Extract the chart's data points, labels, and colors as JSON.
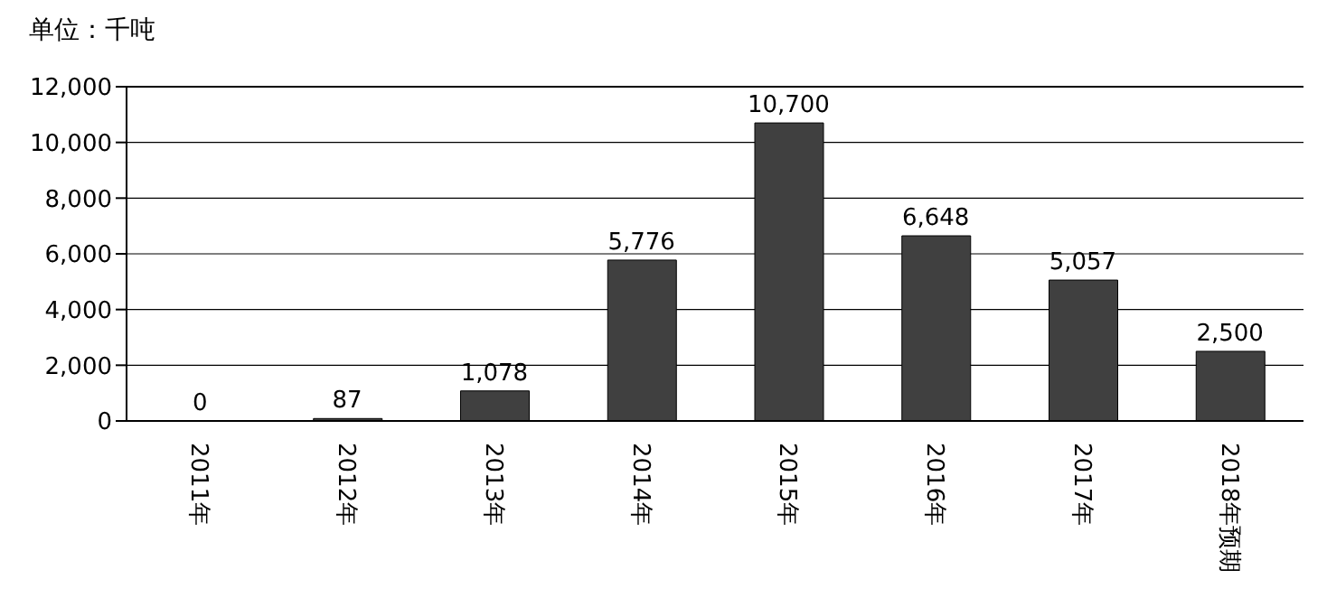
{
  "chart_data": {
    "type": "bar",
    "ylabel": "单位：千吨",
    "categories": [
      "2011年",
      "2012年",
      "2013年",
      "2014年",
      "2015年",
      "2016年",
      "2017年",
      "2018年预期"
    ],
    "values": [
      0,
      87,
      1078,
      5776,
      10700,
      6648,
      5057,
      2500
    ],
    "value_labels": [
      "0",
      "87",
      "1,078",
      "5,776",
      "10,700",
      "6,648",
      "5,057",
      "2,500"
    ],
    "color": "#404040",
    "ylim": [
      0,
      12000
    ],
    "yticks": [
      {
        "value": 0,
        "label": "0"
      },
      {
        "value": 2000,
        "label": "2,000"
      },
      {
        "value": 4000,
        "label": "4,000"
      },
      {
        "value": 6000,
        "label": "6,000"
      },
      {
        "value": 8000,
        "label": "8,000"
      },
      {
        "value": 10000,
        "label": "10,000"
      },
      {
        "value": 12000,
        "label": "12,000"
      }
    ],
    "grid": "y"
  }
}
